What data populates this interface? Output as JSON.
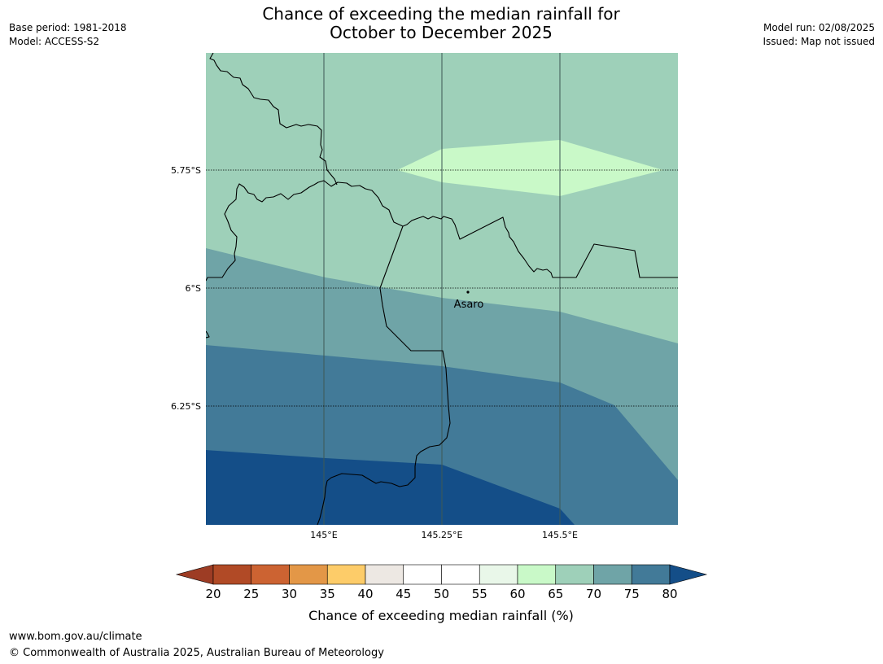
{
  "title_line1": "Chance of exceeding the median rainfall for",
  "title_line2": "October to December 2025",
  "left_meta": [
    "Base period: 1981-2018",
    "Model: ACCESS-S2"
  ],
  "right_meta": [
    "Model run: 02/08/2025",
    "Issued: Map not issued"
  ],
  "map": {
    "lat_labels": [
      "5.75°S",
      "6°S",
      "6.25°S"
    ],
    "lon_labels": [
      "145°E",
      "145.25°E",
      "145.5°E"
    ],
    "place_label": "Asaro",
    "colors": {
      "band_60_65": "#c9f9c8",
      "band_65_70": "#9ed0b9",
      "band_70_75": "#6fa4a7",
      "band_75_80": "#427a98",
      "band_above_80": "#144e88"
    }
  },
  "colorbar": {
    "label": "Chance of exceeding median rainfall (%)",
    "ticks": [
      "20",
      "25",
      "30",
      "35",
      "40",
      "45",
      "50",
      "55",
      "60",
      "65",
      "70",
      "75",
      "80"
    ],
    "colors": [
      "#9d3c24",
      "#b14a26",
      "#cc6332",
      "#e39747",
      "#fdcc69",
      "#ede8e3",
      "#ffffff",
      "#ffffff",
      "#e9f7e9",
      "#c9f9c8",
      "#9ed0b9",
      "#6fa4a7",
      "#427a98",
      "#144e88"
    ]
  },
  "footer": {
    "url": "www.bom.gov.au/climate",
    "copyright": "© Commonwealth of Australia 2025, Australian Bureau of Meteorology"
  }
}
